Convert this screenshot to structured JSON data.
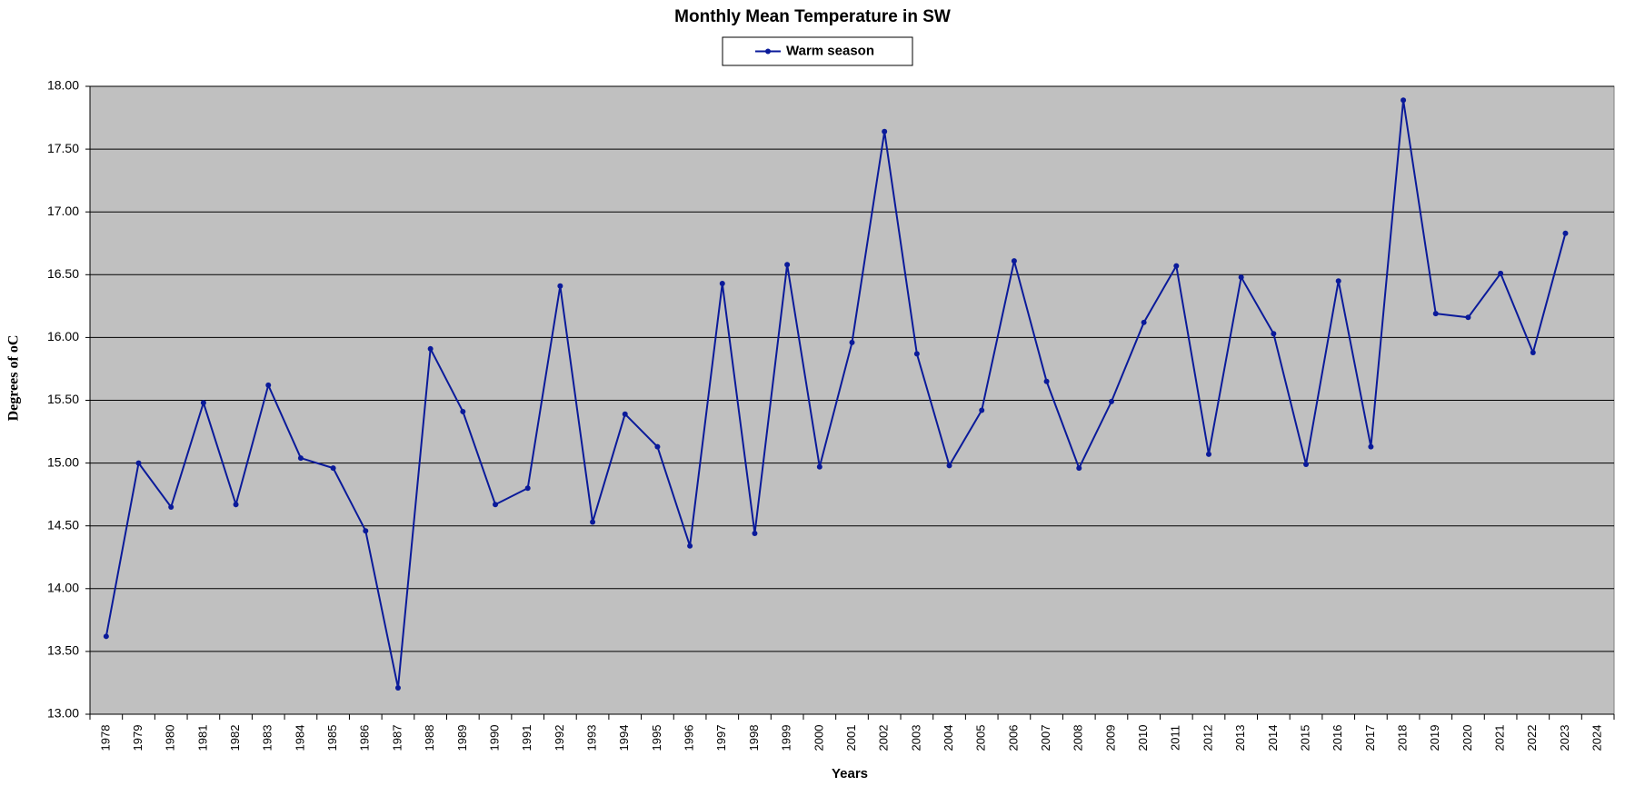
{
  "chart_data": {
    "type": "line",
    "title": "Monthly Mean Temperature in  SW",
    "x_label": "Years",
    "y_label": "Degrees of  oC",
    "categories": [
      "1978",
      "1979",
      "1980",
      "1981",
      "1982",
      "1983",
      "1984",
      "1985",
      "1986",
      "1987",
      "1988",
      "1989",
      "1990",
      "1991",
      "1992",
      "1993",
      "1994",
      "1995",
      "1996",
      "1997",
      "1998",
      "1999",
      "2000",
      "2001",
      "2002",
      "2003",
      "2004",
      "2005",
      "2006",
      "2007",
      "2008",
      "2009",
      "2010",
      "2011",
      "2012",
      "2013",
      "2014",
      "2015",
      "2016",
      "2017",
      "2018",
      "2019",
      "2020",
      "2021",
      "2022",
      "2023",
      "2024"
    ],
    "series": [
      {
        "name": "Warm season",
        "color": "#0a1a9a",
        "values": [
          13.62,
          15.0,
          14.65,
          15.48,
          14.67,
          15.62,
          15.04,
          14.96,
          14.46,
          13.21,
          15.91,
          15.41,
          14.67,
          14.8,
          16.41,
          14.53,
          15.39,
          15.13,
          14.34,
          16.43,
          14.44,
          16.58,
          14.97,
          15.96,
          17.64,
          15.87,
          14.98,
          15.42,
          16.61,
          15.65,
          14.96,
          15.49,
          16.12,
          16.57,
          15.07,
          16.48,
          16.03,
          14.99,
          16.45,
          15.13,
          17.89,
          16.19,
          16.16,
          16.51,
          15.88,
          16.83,
          null
        ]
      }
    ],
    "ylim": [
      13,
      18
    ],
    "yticks": [
      {
        "value": 13,
        "label": "13.00"
      },
      {
        "value": 13.5,
        "label": "13.50"
      },
      {
        "value": 14,
        "label": "14.00"
      },
      {
        "value": 14.5,
        "label": "14.50"
      },
      {
        "value": 15,
        "label": "15.00"
      },
      {
        "value": 15.5,
        "label": "15.50"
      },
      {
        "value": 16,
        "label": "16.00"
      },
      {
        "value": 16.5,
        "label": "16.50"
      },
      {
        "value": 17,
        "label": "17.00"
      },
      {
        "value": 17.5,
        "label": "17.50"
      },
      {
        "value": 18,
        "label": "18.00"
      }
    ],
    "grid": true,
    "legend": "top",
    "plot_background": "#c0c0c0"
  }
}
